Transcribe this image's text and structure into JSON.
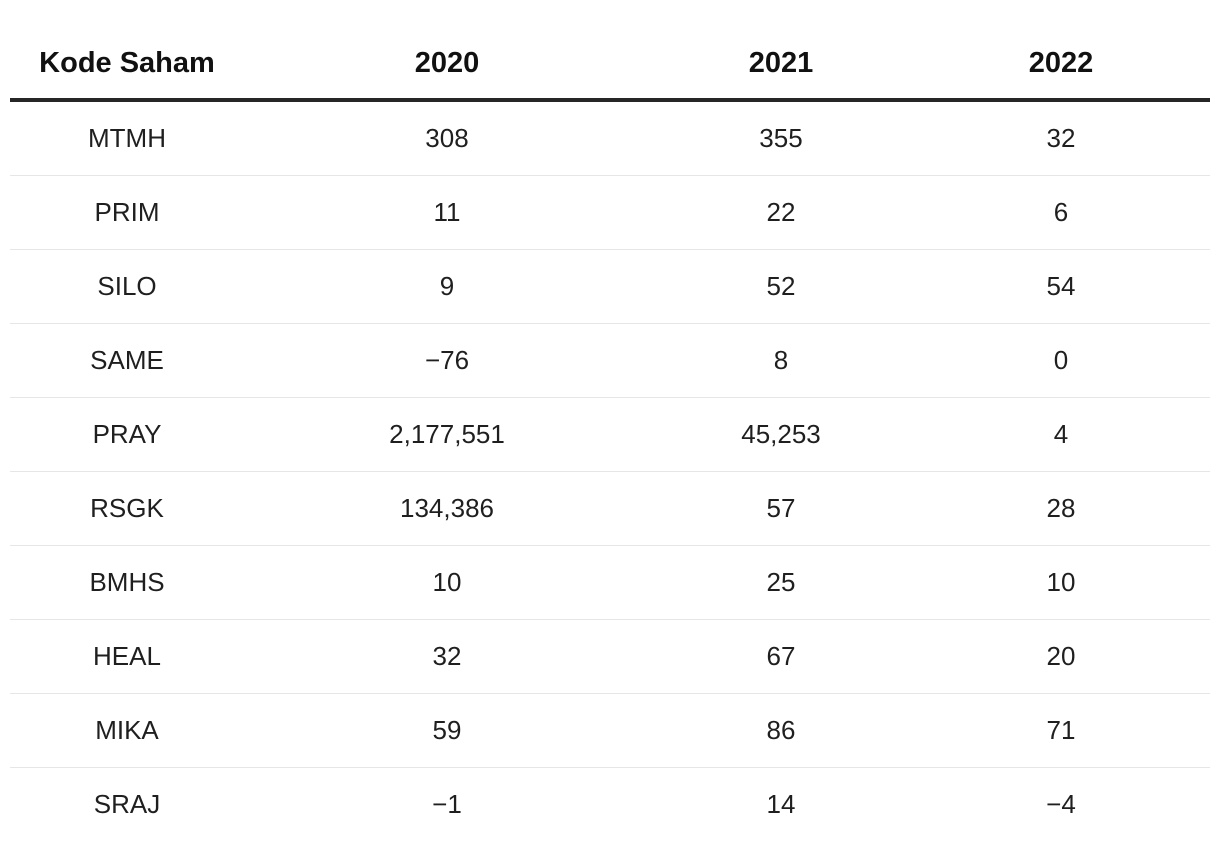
{
  "chart_data": {
    "type": "table",
    "columns": [
      "Kode Saham",
      "2020",
      "2021",
      "2022"
    ],
    "rows": [
      [
        "MTMH",
        "308",
        "355",
        "32"
      ],
      [
        "PRIM",
        "11",
        "22",
        "6"
      ],
      [
        "SILO",
        "9",
        "52",
        "54"
      ],
      [
        "SAME",
        "−76",
        "8",
        "0"
      ],
      [
        "PRAY",
        "2,177,551",
        "45,253",
        "4"
      ],
      [
        "RSGK",
        "134,386",
        "57",
        "28"
      ],
      [
        "BMHS",
        "10",
        "25",
        "10"
      ],
      [
        "HEAL",
        "32",
        "67",
        "20"
      ],
      [
        "MIKA",
        "59",
        "86",
        "71"
      ],
      [
        "SRAJ",
        "−1",
        "14",
        "−4"
      ]
    ]
  }
}
